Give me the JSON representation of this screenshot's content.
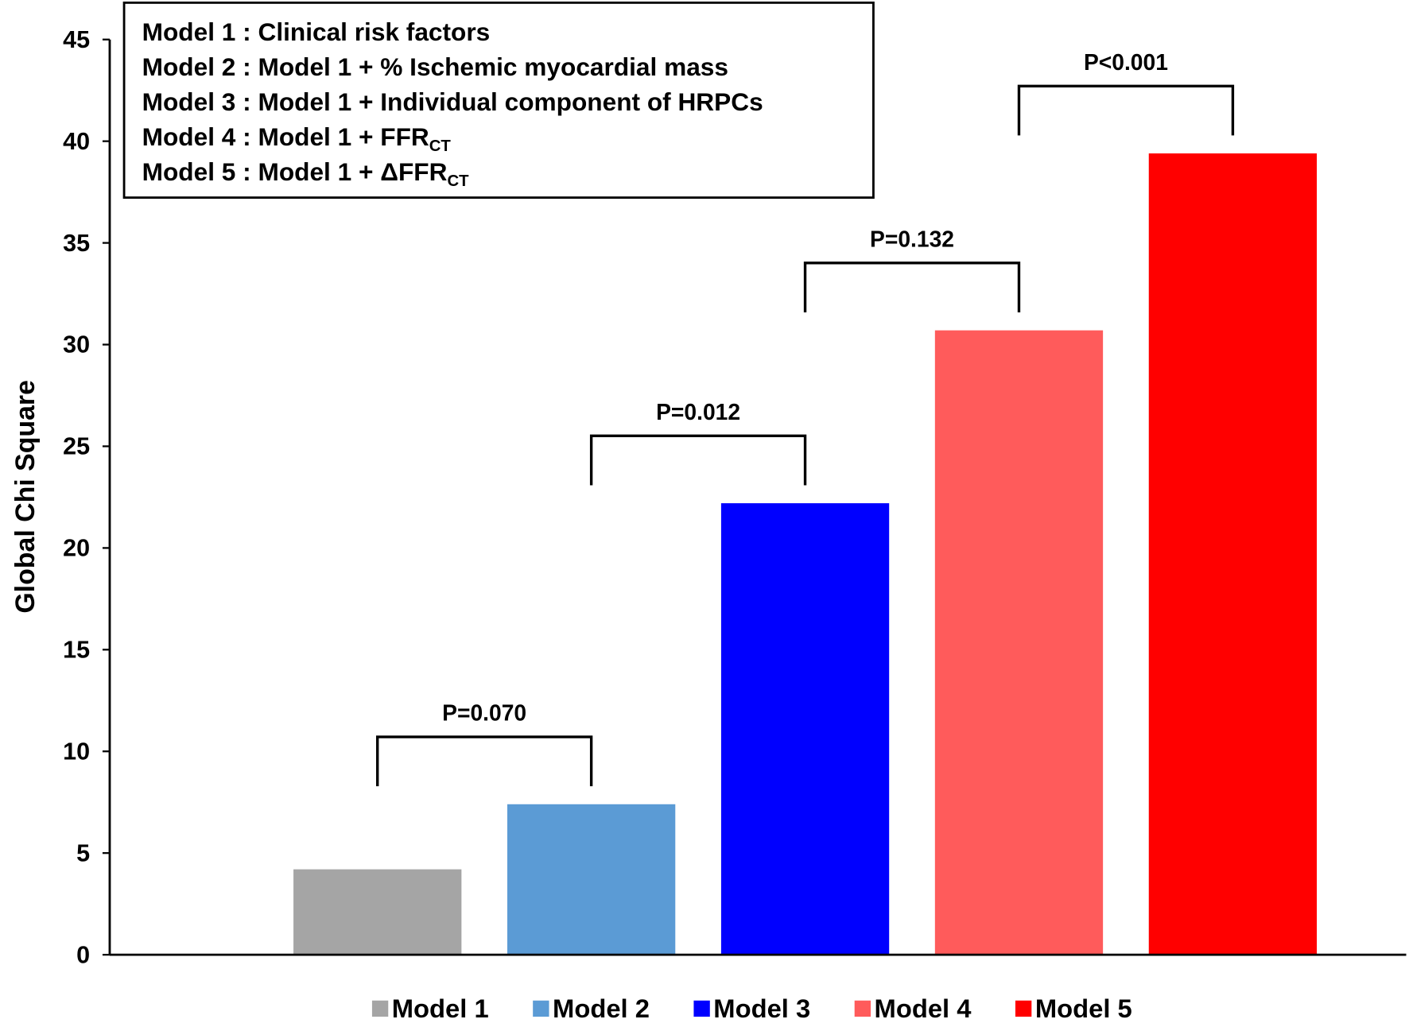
{
  "chart_data": {
    "type": "bar",
    "y_label": "Global Chi Square",
    "categories": [
      "Model 1",
      "Model 2",
      "Model 3",
      "Model 4",
      "Model 5"
    ],
    "values": [
      4.2,
      7.4,
      22.2,
      30.7,
      39.4
    ],
    "colors": [
      "#a5a5a5",
      "#5b9bd5",
      "#0000ff",
      "#ff5b5b",
      "#ff0000"
    ],
    "ylim": [
      0,
      45
    ],
    "yticks": [
      0,
      5,
      10,
      15,
      20,
      25,
      30,
      35,
      40,
      45
    ],
    "annotations": [
      "P=0.070",
      "P=0.012",
      "P=0.132",
      "P<0.001"
    ],
    "notes": [
      {
        "text": "Model 1 : Clinical risk factors"
      },
      {
        "text": "Model 2 : Model 1 + % Ischemic myocardial mass"
      },
      {
        "text": "Model 3 : Model 1 + Individual component of HRPCs"
      },
      {
        "text": "Model 4 : Model 1 + FFR",
        "sub": "CT"
      },
      {
        "text": "Model 5 : Model 1 + ΔFFR",
        "sub": "CT"
      }
    ]
  }
}
